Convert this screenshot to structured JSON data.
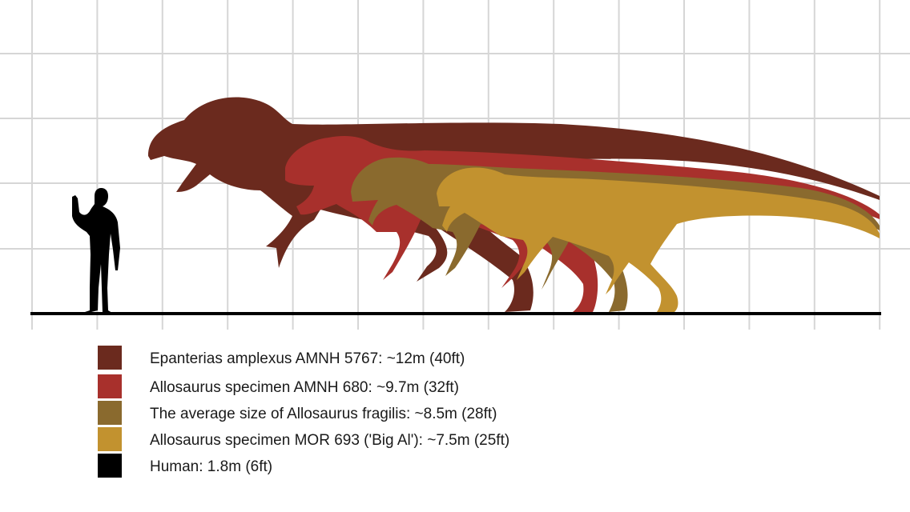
{
  "figure": {
    "specimens": [
      {
        "id": "epanterias",
        "color": "#6b2a1e",
        "length_m": 12,
        "label": "Epanterias amplexus AMNH 5767:  ~12m (40ft)",
        "silhouette": "theropod-silhouette"
      },
      {
        "id": "amnh680",
        "color": "#a8302c",
        "length_m": 9.7,
        "label": "Allosaurus specimen AMNH 680:  ~9.7m (32ft)",
        "silhouette": "theropod-silhouette"
      },
      {
        "id": "average",
        "color": "#8a6a2e",
        "length_m": 8.5,
        "label": "The average size of Allosaurus fragilis:  ~8.5m (28ft)",
        "silhouette": "theropod-silhouette"
      },
      {
        "id": "bigal",
        "color": "#c2922f",
        "length_m": 7.5,
        "label": "Allosaurus specimen MOR 693 ('Big Al'):  ~7.5m (25ft)",
        "silhouette": "theropod-silhouette"
      },
      {
        "id": "human",
        "color": "#000000",
        "length_m": 1.8,
        "label": "Human:  1.8m (6ft)",
        "silhouette": "human-silhouette"
      }
    ],
    "grid": {
      "visible": true,
      "color": "#d6d6d6",
      "ground_color": "#000000"
    }
  }
}
